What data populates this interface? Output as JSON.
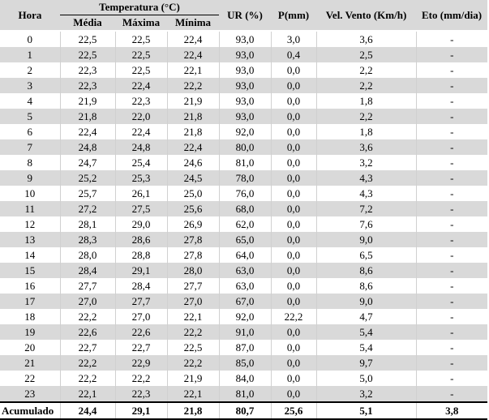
{
  "header": {
    "hora": "Hora",
    "temperatura": "Temperatura (°C)",
    "media": "Média",
    "maxima": "Máxima",
    "minima": "Mínima",
    "ur": "UR (%)",
    "p": "P(mm)",
    "vento": "Vel. Vento (Km/h)",
    "eto": "Eto (mm/dia)"
  },
  "rows": [
    [
      "0",
      "22,5",
      "22,5",
      "22,4",
      "93,0",
      "3,0",
      "3,6",
      "-"
    ],
    [
      "1",
      "22,5",
      "22,5",
      "22,4",
      "93,0",
      "0,4",
      "2,5",
      "-"
    ],
    [
      "2",
      "22,3",
      "22,5",
      "22,1",
      "93,0",
      "0,0",
      "2,2",
      "-"
    ],
    [
      "3",
      "22,3",
      "22,4",
      "22,2",
      "93,0",
      "0,0",
      "2,2",
      "-"
    ],
    [
      "4",
      "21,9",
      "22,3",
      "21,9",
      "93,0",
      "0,0",
      "1,8",
      "-"
    ],
    [
      "5",
      "21,8",
      "22,0",
      "21,8",
      "93,0",
      "0,0",
      "2,2",
      "-"
    ],
    [
      "6",
      "22,4",
      "22,4",
      "21,8",
      "92,0",
      "0,0",
      "1,8",
      "-"
    ],
    [
      "7",
      "24,8",
      "24,8",
      "22,4",
      "80,0",
      "0,0",
      "3,6",
      "-"
    ],
    [
      "8",
      "24,7",
      "25,4",
      "24,6",
      "81,0",
      "0,0",
      "3,2",
      "-"
    ],
    [
      "9",
      "25,2",
      "25,3",
      "24,5",
      "78,0",
      "0,0",
      "4,3",
      "-"
    ],
    [
      "10",
      "25,7",
      "26,1",
      "25,0",
      "76,0",
      "0,0",
      "4,3",
      "-"
    ],
    [
      "11",
      "27,2",
      "27,5",
      "25,6",
      "68,0",
      "0,0",
      "7,2",
      "-"
    ],
    [
      "12",
      "28,1",
      "29,0",
      "26,9",
      "62,0",
      "0,0",
      "7,6",
      "-"
    ],
    [
      "13",
      "28,3",
      "28,6",
      "27,8",
      "65,0",
      "0,0",
      "9,0",
      "-"
    ],
    [
      "14",
      "28,0",
      "28,8",
      "27,8",
      "64,0",
      "0,0",
      "6,5",
      "-"
    ],
    [
      "15",
      "28,4",
      "29,1",
      "28,0",
      "63,0",
      "0,0",
      "8,6",
      "-"
    ],
    [
      "16",
      "27,7",
      "28,4",
      "27,7",
      "63,0",
      "0,0",
      "8,6",
      "-"
    ],
    [
      "17",
      "27,0",
      "27,7",
      "27,0",
      "67,0",
      "0,0",
      "9,0",
      "-"
    ],
    [
      "18",
      "22,2",
      "27,0",
      "22,1",
      "92,0",
      "22,2",
      "4,7",
      "-"
    ],
    [
      "19",
      "22,6",
      "22,6",
      "22,2",
      "91,0",
      "0,0",
      "5,4",
      "-"
    ],
    [
      "20",
      "22,7",
      "22,7",
      "22,5",
      "87,0",
      "0,0",
      "5,4",
      "-"
    ],
    [
      "21",
      "22,2",
      "22,9",
      "22,2",
      "85,0",
      "0,0",
      "9,7",
      "-"
    ],
    [
      "22",
      "22,2",
      "22,2",
      "21,9",
      "84,0",
      "0,0",
      "5,0",
      "-"
    ],
    [
      "23",
      "22,1",
      "22,3",
      "22,1",
      "81,0",
      "0,0",
      "3,2",
      "-"
    ]
  ],
  "footer": [
    "Acumulado",
    "24,4",
    "29,1",
    "21,8",
    "80,7",
    "25,6",
    "5,1",
    "3,8"
  ]
}
